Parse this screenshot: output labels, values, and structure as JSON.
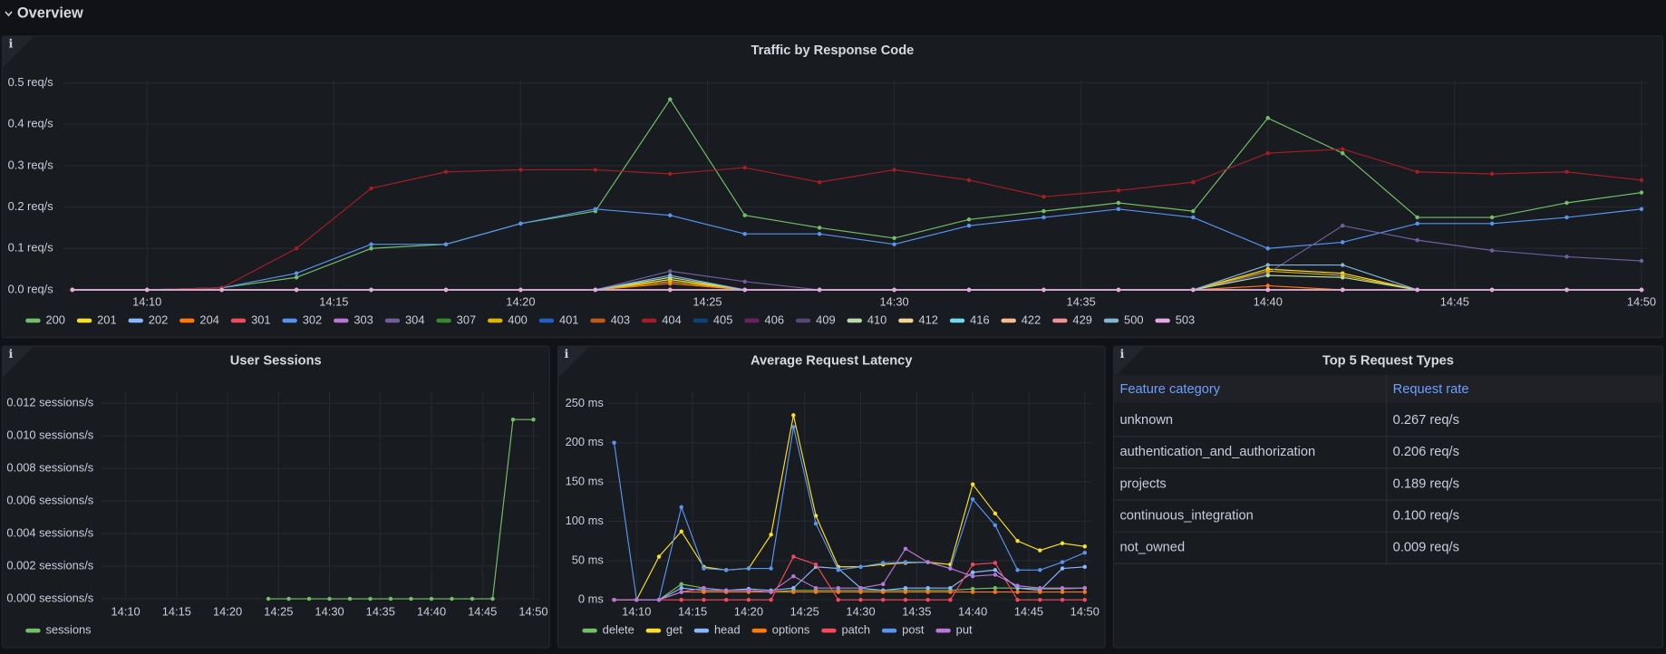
{
  "header": {
    "title": "Overview"
  },
  "chart_data": [
    {
      "type": "line",
      "title": "Traffic by Response Code",
      "x": [
        "14:08",
        "14:10",
        "14:12",
        "14:14",
        "14:16",
        "14:18",
        "14:20",
        "14:22",
        "14:24",
        "14:26",
        "14:28",
        "14:30",
        "14:32",
        "14:34",
        "14:36",
        "14:38",
        "14:40",
        "14:42",
        "14:44",
        "14:46",
        "14:48",
        "14:50"
      ],
      "xlim": [
        "14:08",
        "14:50"
      ],
      "xticks": [
        "14:10",
        "14:15",
        "14:20",
        "14:25",
        "14:30",
        "14:35",
        "14:40",
        "14:45",
        "14:50"
      ],
      "ylim": [
        0,
        0.5
      ],
      "yticks": [
        {
          "value": 0,
          "label": "0.0 req/s"
        },
        {
          "value": 0.1,
          "label": "0.1 req/s"
        },
        {
          "value": 0.2,
          "label": "0.2 req/s"
        },
        {
          "value": 0.3,
          "label": "0.3 req/s"
        },
        {
          "value": 0.4,
          "label": "0.4 req/s"
        },
        {
          "value": 0.5,
          "label": "0.5 req/s"
        }
      ],
      "grid": true,
      "series": [
        {
          "name": "200",
          "color": "#73bf69",
          "values": [
            0,
            0,
            0.005,
            0.03,
            0.1,
            0.11,
            0.16,
            0.19,
            0.46,
            0.18,
            0.15,
            0.125,
            0.17,
            0.19,
            0.21,
            0.19,
            0.415,
            0.33,
            0.175,
            0.175,
            0.21,
            0.235
          ]
        },
        {
          "name": "201",
          "color": "#fade2a",
          "values": [
            0,
            0,
            0,
            0,
            0,
            0,
            0,
            0,
            0.025,
            0,
            0,
            0,
            0,
            0,
            0,
            0,
            0.05,
            0.04,
            0,
            0,
            0,
            0
          ]
        },
        {
          "name": "202",
          "color": "#8ab8ff",
          "values": [
            0,
            0,
            0,
            0,
            0,
            0,
            0,
            0,
            0,
            0,
            0,
            0,
            0,
            0,
            0,
            0,
            0,
            0,
            0,
            0,
            0,
            0
          ]
        },
        {
          "name": "204",
          "color": "#ff780a",
          "values": [
            0,
            0,
            0,
            0,
            0,
            0,
            0,
            0,
            0.015,
            0,
            0,
            0,
            0,
            0,
            0,
            0,
            0.01,
            0,
            0,
            0,
            0,
            0
          ]
        },
        {
          "name": "301",
          "color": "#f2495c",
          "values": [
            0,
            0,
            0,
            0,
            0,
            0,
            0,
            0,
            0,
            0,
            0,
            0,
            0,
            0,
            0,
            0,
            0,
            0,
            0,
            0,
            0,
            0
          ]
        },
        {
          "name": "302",
          "color": "#5794f2",
          "values": [
            0,
            0,
            0.005,
            0.04,
            0.11,
            0.11,
            0.16,
            0.195,
            0.18,
            0.135,
            0.135,
            0.11,
            0.155,
            0.175,
            0.195,
            0.175,
            0.1,
            0.115,
            0.16,
            0.16,
            0.175,
            0.195
          ]
        },
        {
          "name": "303",
          "color": "#b877d9",
          "values": [
            0,
            0,
            0,
            0,
            0,
            0,
            0,
            0,
            0,
            0,
            0,
            0,
            0,
            0,
            0,
            0,
            0,
            0,
            0,
            0,
            0,
            0
          ]
        },
        {
          "name": "304",
          "color": "#705da0",
          "values": [
            0,
            0,
            0,
            0,
            0,
            0,
            0,
            0,
            0.045,
            0.02,
            0,
            0,
            0,
            0,
            0,
            0,
            0.04,
            0.155,
            0.12,
            0.095,
            0.08,
            0.07
          ]
        },
        {
          "name": "307",
          "color": "#37872d",
          "values": [
            0,
            0,
            0,
            0,
            0,
            0,
            0,
            0,
            0,
            0,
            0,
            0,
            0,
            0,
            0,
            0,
            0,
            0,
            0,
            0,
            0,
            0
          ]
        },
        {
          "name": "400",
          "color": "#e0b400",
          "values": [
            0,
            0,
            0,
            0,
            0,
            0,
            0,
            0,
            0.02,
            0,
            0,
            0,
            0,
            0,
            0,
            0,
            0.045,
            0.035,
            0,
            0,
            0,
            0
          ]
        },
        {
          "name": "401",
          "color": "#1f60c4",
          "values": [
            0,
            0,
            0,
            0,
            0,
            0,
            0,
            0,
            0,
            0,
            0,
            0,
            0,
            0,
            0,
            0,
            0,
            0,
            0,
            0,
            0,
            0
          ]
        },
        {
          "name": "403",
          "color": "#c15c17",
          "values": [
            0,
            0,
            0,
            0,
            0,
            0,
            0,
            0,
            0,
            0,
            0,
            0,
            0,
            0,
            0,
            0,
            0,
            0,
            0,
            0,
            0,
            0
          ]
        },
        {
          "name": "404",
          "color": "#a61d24",
          "values": [
            0,
            0,
            0.005,
            0.1,
            0.245,
            0.285,
            0.29,
            0.29,
            0.28,
            0.295,
            0.26,
            0.29,
            0.265,
            0.225,
            0.24,
            0.26,
            0.33,
            0.34,
            0.285,
            0.28,
            0.285,
            0.265
          ]
        },
        {
          "name": "405",
          "color": "#0a437c",
          "values": [
            0,
            0,
            0,
            0,
            0,
            0,
            0,
            0,
            0,
            0,
            0,
            0,
            0,
            0,
            0,
            0,
            0,
            0,
            0,
            0,
            0,
            0
          ]
        },
        {
          "name": "406",
          "color": "#6d1f62",
          "values": [
            0,
            0,
            0,
            0,
            0,
            0,
            0,
            0,
            0,
            0,
            0,
            0,
            0,
            0,
            0,
            0,
            0,
            0,
            0,
            0,
            0,
            0
          ]
        },
        {
          "name": "409",
          "color": "#584477",
          "values": [
            0,
            0,
            0,
            0,
            0,
            0,
            0,
            0,
            0,
            0,
            0,
            0,
            0,
            0,
            0,
            0,
            0,
            0,
            0,
            0,
            0,
            0
          ]
        },
        {
          "name": "410",
          "color": "#b7dbab",
          "values": [
            0,
            0,
            0,
            0,
            0,
            0,
            0,
            0,
            0.03,
            0,
            0,
            0,
            0,
            0,
            0,
            0,
            0.035,
            0.03,
            0,
            0,
            0,
            0
          ]
        },
        {
          "name": "412",
          "color": "#f4d598",
          "values": [
            0,
            0,
            0,
            0,
            0,
            0,
            0,
            0,
            0,
            0,
            0,
            0,
            0,
            0,
            0,
            0,
            0,
            0,
            0,
            0,
            0,
            0
          ]
        },
        {
          "name": "416",
          "color": "#70dbed",
          "values": [
            0,
            0,
            0,
            0,
            0,
            0,
            0,
            0,
            0,
            0,
            0,
            0,
            0,
            0,
            0,
            0,
            0,
            0,
            0,
            0,
            0,
            0
          ]
        },
        {
          "name": "422",
          "color": "#f9ba8f",
          "values": [
            0,
            0,
            0,
            0,
            0,
            0,
            0,
            0,
            0,
            0,
            0,
            0,
            0,
            0,
            0,
            0,
            0,
            0,
            0,
            0,
            0,
            0
          ]
        },
        {
          "name": "429",
          "color": "#f29191",
          "values": [
            0,
            0,
            0,
            0,
            0,
            0,
            0,
            0,
            0,
            0,
            0,
            0,
            0,
            0,
            0,
            0,
            0,
            0,
            0,
            0,
            0,
            0
          ]
        },
        {
          "name": "500",
          "color": "#82b5d8",
          "values": [
            0,
            0,
            0,
            0,
            0,
            0,
            0,
            0,
            0.035,
            0,
            0,
            0,
            0,
            0,
            0,
            0,
            0.06,
            0.06,
            0,
            0,
            0,
            0
          ]
        },
        {
          "name": "503",
          "color": "#e5a8e2",
          "values": [
            0,
            0,
            0,
            0,
            0,
            0,
            0,
            0,
            0,
            0,
            0,
            0,
            0,
            0,
            0,
            0,
            0,
            0,
            0,
            0,
            0,
            0
          ]
        }
      ]
    },
    {
      "type": "line",
      "title": "User Sessions",
      "x": [
        "14:24",
        "14:26",
        "14:28",
        "14:30",
        "14:32",
        "14:34",
        "14:36",
        "14:38",
        "14:40",
        "14:42",
        "14:44",
        "14:46",
        "14:48",
        "14:50"
      ],
      "xlim": [
        "14:08",
        "14:50"
      ],
      "xticks": [
        "14:10",
        "14:15",
        "14:20",
        "14:25",
        "14:30",
        "14:35",
        "14:40",
        "14:45",
        "14:50"
      ],
      "ylim": [
        0,
        0.013
      ],
      "yticks": [
        {
          "value": 0,
          "label": "0.000 sessions/s"
        },
        {
          "value": 0.002,
          "label": "0.002 sessions/s"
        },
        {
          "value": 0.004,
          "label": "0.004 sessions/s"
        },
        {
          "value": 0.006,
          "label": "0.006 sessions/s"
        },
        {
          "value": 0.008,
          "label": "0.008 sessions/s"
        },
        {
          "value": 0.01,
          "label": "0.010 sessions/s"
        },
        {
          "value": 0.012,
          "label": "0.012 sessions/s"
        }
      ],
      "grid": true,
      "series": [
        {
          "name": "sessions",
          "color": "#73bf69",
          "values": [
            0,
            0,
            0,
            0,
            0,
            0,
            0,
            0,
            0,
            0,
            0,
            0,
            0.011,
            0.011
          ]
        }
      ]
    },
    {
      "type": "line",
      "title": "Average Request Latency",
      "x": [
        "14:08",
        "14:10",
        "14:12",
        "14:14",
        "14:16",
        "14:18",
        "14:20",
        "14:22",
        "14:24",
        "14:26",
        "14:28",
        "14:30",
        "14:32",
        "14:34",
        "14:36",
        "14:38",
        "14:40",
        "14:42",
        "14:44",
        "14:46",
        "14:48",
        "14:50"
      ],
      "xlim": [
        "14:08",
        "14:50"
      ],
      "xticks": [
        "14:10",
        "14:15",
        "14:20",
        "14:25",
        "14:30",
        "14:35",
        "14:40",
        "14:45",
        "14:50"
      ],
      "ylim": [
        0,
        260
      ],
      "yticks": [
        {
          "value": 0,
          "label": "0 ms"
        },
        {
          "value": 50,
          "label": "50 ms"
        },
        {
          "value": 100,
          "label": "100 ms"
        },
        {
          "value": 150,
          "label": "150 ms"
        },
        {
          "value": 200,
          "label": "200 ms"
        },
        {
          "value": 250,
          "label": "250 ms"
        }
      ],
      "grid": true,
      "series": [
        {
          "name": "delete",
          "color": "#73bf69",
          "values": [
            0,
            0,
            0,
            20,
            15,
            12,
            12,
            10,
            12,
            12,
            12,
            12,
            12,
            12,
            12,
            12,
            14,
            15,
            15,
            14,
            14,
            15
          ]
        },
        {
          "name": "get",
          "color": "#fade2a",
          "values": [
            0,
            0,
            55,
            87,
            42,
            38,
            40,
            83,
            235,
            107,
            42,
            42,
            45,
            47,
            48,
            45,
            147,
            110,
            75,
            63,
            72,
            68
          ]
        },
        {
          "name": "head",
          "color": "#8ab8ff",
          "values": [
            0,
            0,
            0,
            15,
            12,
            12,
            14,
            12,
            15,
            42,
            40,
            15,
            12,
            15,
            15,
            15,
            35,
            38,
            15,
            12,
            40,
            42
          ]
        },
        {
          "name": "options",
          "color": "#ff780a",
          "values": [
            0,
            0,
            0,
            10,
            10,
            10,
            10,
            10,
            10,
            10,
            10,
            10,
            10,
            10,
            10,
            10,
            10,
            10,
            10,
            10,
            10,
            10
          ]
        },
        {
          "name": "patch",
          "color": "#f2495c",
          "values": [
            0,
            0,
            0,
            0,
            0,
            0,
            0,
            0,
            55,
            45,
            0,
            0,
            0,
            0,
            0,
            0,
            45,
            47,
            0,
            0,
            0,
            0
          ]
        },
        {
          "name": "post",
          "color": "#5794f2",
          "values": [
            200,
            0,
            0,
            118,
            40,
            38,
            40,
            40,
            220,
            97,
            38,
            42,
            47,
            48,
            48,
            40,
            128,
            95,
            38,
            38,
            48,
            60
          ]
        },
        {
          "name": "put",
          "color": "#b877d9",
          "values": [
            0,
            0,
            0,
            10,
            15,
            12,
            12,
            10,
            30,
            15,
            15,
            15,
            20,
            65,
            48,
            40,
            30,
            32,
            18,
            15,
            15,
            15
          ]
        }
      ]
    }
  ],
  "table": {
    "title": "Top 5 Request Types",
    "columns": [
      "Feature category",
      "Request rate"
    ],
    "rows": [
      [
        "unknown",
        "0.267 req/s"
      ],
      [
        "authentication_and_authorization",
        "0.206 req/s"
      ],
      [
        "projects",
        "0.189 req/s"
      ],
      [
        "continuous_integration",
        "0.100 req/s"
      ],
      [
        "not_owned",
        "0.009 req/s"
      ]
    ]
  }
}
